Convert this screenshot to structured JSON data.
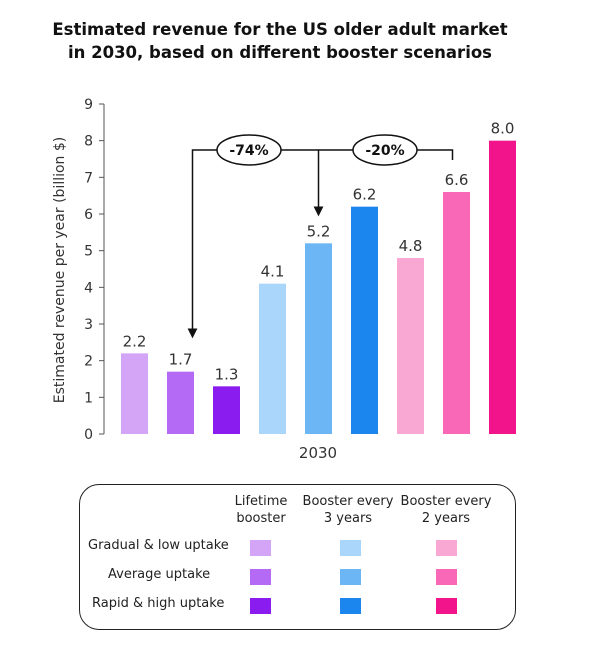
{
  "chart_data": {
    "type": "bar",
    "title": "Estimated revenue for the US older adult market in 2030, based on different booster scenarios",
    "title_lines": [
      "Estimated revenue for the US older adult market",
      "in 2030, based on different booster scenarios"
    ],
    "ylabel": "Estimated revenue per year (billion $)",
    "xlabel": "2030",
    "ylim": [
      0,
      9
    ],
    "yticks": [
      0,
      1,
      2,
      3,
      4,
      5,
      6,
      7,
      8,
      9
    ],
    "bars": [
      {
        "scenario": "Lifetime booster",
        "uptake": "Gradual & low uptake",
        "value": 2.2,
        "label": "2.2",
        "color": "#d4a5f7"
      },
      {
        "scenario": "Lifetime booster",
        "uptake": "Average uptake",
        "value": 1.7,
        "label": "1.7",
        "color": "#b56af5"
      },
      {
        "scenario": "Lifetime booster",
        "uptake": "Rapid & high uptake",
        "value": 1.3,
        "label": "1.3",
        "color": "#8a1cf0"
      },
      {
        "scenario": "Booster every 3 years",
        "uptake": "Gradual & low uptake",
        "value": 4.1,
        "label": "4.1",
        "color": "#a9d6fa"
      },
      {
        "scenario": "Booster every 3 years",
        "uptake": "Average uptake",
        "value": 5.2,
        "label": "5.2",
        "color": "#6cb6f5"
      },
      {
        "scenario": "Booster every 3 years",
        "uptake": "Rapid & high uptake",
        "value": 6.2,
        "label": "6.2",
        "color": "#1b86ee"
      },
      {
        "scenario": "Booster every 2 years",
        "uptake": "Gradual & low uptake",
        "value": 4.8,
        "label": "4.8",
        "color": "#f9a8d4"
      },
      {
        "scenario": "Booster every 2 years",
        "uptake": "Average uptake",
        "value": 6.6,
        "label": "6.6",
        "color": "#f868b6"
      },
      {
        "scenario": "Booster every 2 years",
        "uptake": "Rapid & high uptake",
        "value": 8.0,
        "label": "8.0",
        "color": "#f2148a"
      }
    ],
    "annotations": [
      {
        "text": "-74%",
        "from_value": 5.2,
        "to_value": 1.3
      },
      {
        "text": "-20%",
        "from_value": 6.6,
        "to_value": 5.2
      }
    ]
  },
  "legend": {
    "columns": [
      {
        "line1": "Lifetime",
        "line2": "booster"
      },
      {
        "line1": "Booster every",
        "line2": "3 years"
      },
      {
        "line1": "Booster every",
        "line2": "2 years"
      }
    ],
    "rows": [
      {
        "label": "Gradual & low uptake",
        "colors": [
          "#d4a5f7",
          "#a9d6fa",
          "#f9a8d4"
        ]
      },
      {
        "label": "Average uptake",
        "colors": [
          "#b56af5",
          "#6cb6f5",
          "#f868b6"
        ]
      },
      {
        "label": "Rapid & high uptake",
        "colors": [
          "#8a1cf0",
          "#1b86ee",
          "#f2148a"
        ]
      }
    ]
  }
}
